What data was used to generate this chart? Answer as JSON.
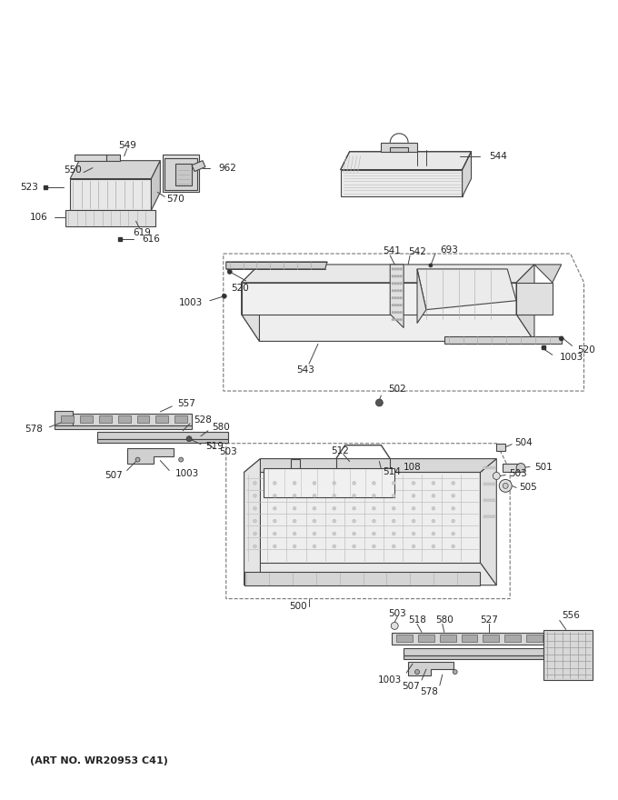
{
  "art_no": "(ART NO. WR20953 C41)",
  "bg_color": "#ffffff",
  "lc": "#444444",
  "lc2": "#888888",
  "fc_light": "#f0f0f0",
  "fc_mid": "#d8d8d8",
  "fc_dark": "#b8b8b8",
  "figsize": [
    6.8,
    8.8
  ],
  "dpi": 100
}
